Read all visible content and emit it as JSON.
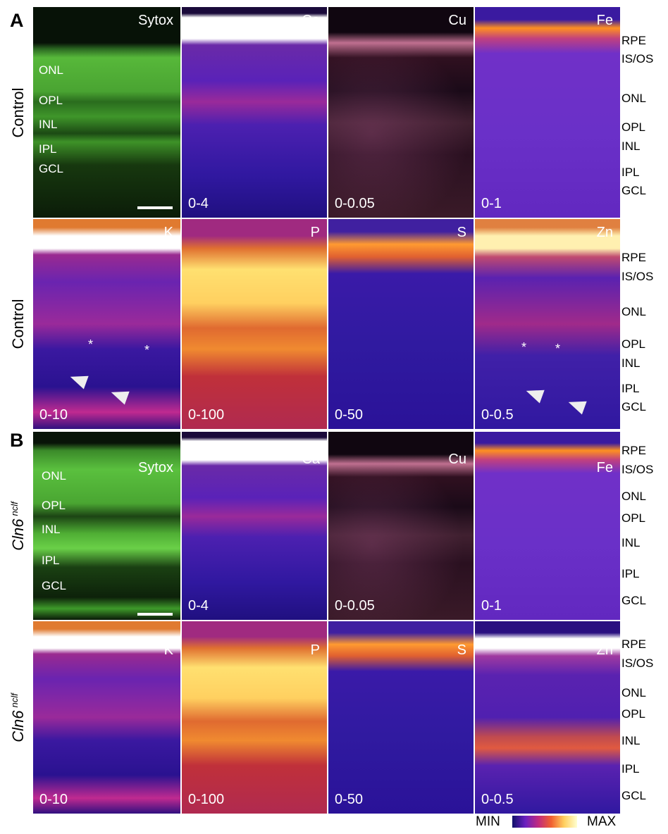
{
  "figure": {
    "panel_labels": [
      "A",
      "B"
    ],
    "rows": [
      {
        "condition": "Control",
        "tissue_layers": [
          "ONL",
          "OPL",
          "INL",
          "IPL",
          "GCL"
        ],
        "maps": [
          {
            "element": "Sytox"
          },
          {
            "element": "Ca",
            "range": "0-4"
          },
          {
            "element": "Cu",
            "range": "0-0.05"
          },
          {
            "element": "Fe",
            "range": "0-1"
          }
        ],
        "layers": [
          "RPE",
          "IS/OS",
          "ONL",
          "OPL",
          "INL",
          "IPL",
          "GCL"
        ]
      },
      {
        "condition": "Control",
        "maps": [
          {
            "element": "K",
            "range": "0-10"
          },
          {
            "element": "P",
            "range": "0-100"
          },
          {
            "element": "S",
            "range": "0-50"
          },
          {
            "element": "Zn",
            "range": "0-0.5"
          }
        ],
        "layers": [
          "RPE",
          "IS/OS",
          "ONL",
          "OPL",
          "INL",
          "IPL",
          "GCL"
        ]
      },
      {
        "condition": "Cln6",
        "condition_superscript": "nclf",
        "tissue_layers": [
          "ONL",
          "OPL",
          "INL",
          "IPL",
          "GCL"
        ],
        "maps": [
          {
            "element": "Sytox"
          },
          {
            "element": "Ca",
            "range": "0-4"
          },
          {
            "element": "Cu",
            "range": "0-0.05"
          },
          {
            "element": "Fe",
            "range": "0-1"
          }
        ],
        "layers": [
          "RPE",
          "IS/OS",
          "ONL",
          "OPL",
          "INL",
          "IPL",
          "GCL"
        ]
      },
      {
        "condition": "Cln6",
        "condition_superscript": "nclf",
        "maps": [
          {
            "element": "K",
            "range": "0-10"
          },
          {
            "element": "P",
            "range": "0-100"
          },
          {
            "element": "S",
            "range": "0-50"
          },
          {
            "element": "Zn",
            "range": "0-0.5"
          }
        ],
        "layers": [
          "RPE",
          "IS/OS",
          "ONL",
          "OPL",
          "INL",
          "IPL",
          "GCL"
        ]
      }
    ],
    "colorbar": {
      "min": "MIN",
      "max": "MAX"
    }
  }
}
